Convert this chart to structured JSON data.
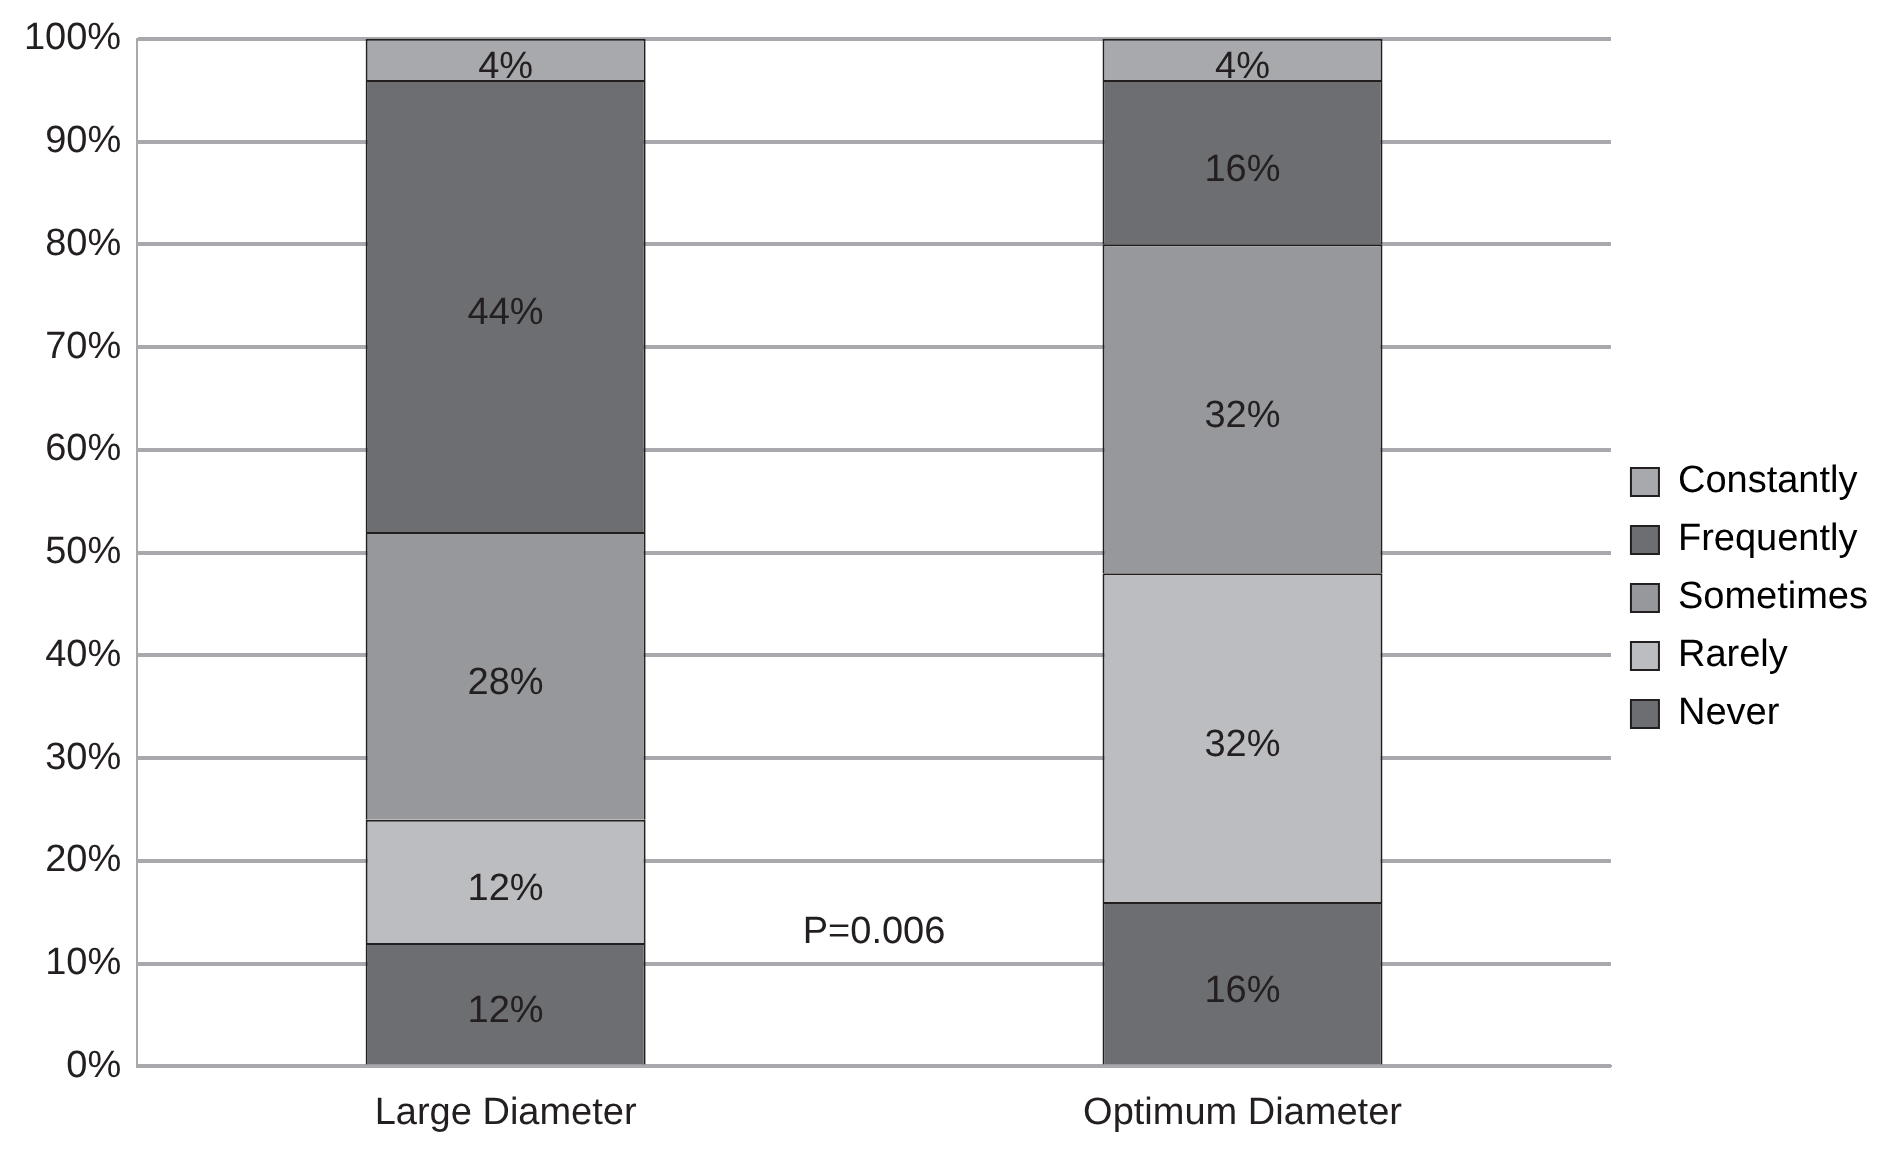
{
  "chart_data": {
    "type": "bar",
    "stacked": true,
    "categories": [
      "Large Diameter",
      "Optimum Diameter"
    ],
    "series": [
      {
        "name": "Never",
        "color": "#6d6e71",
        "values": [
          12,
          16
        ],
        "value_labels": [
          "12%",
          "16%"
        ]
      },
      {
        "name": "Rarely",
        "color": "#bcbdc0",
        "values": [
          12,
          32
        ],
        "value_labels": [
          "12%",
          "32%"
        ]
      },
      {
        "name": "Sometimes",
        "color": "#97989b",
        "values": [
          28,
          32
        ],
        "value_labels": [
          "28%",
          "32%"
        ]
      },
      {
        "name": "Frequently",
        "color": "#6d6e71",
        "values": [
          44,
          16
        ],
        "value_labels": [
          "44%",
          "16%"
        ]
      },
      {
        "name": "Constantly",
        "color": "#a7a9ac",
        "values": [
          4,
          4
        ],
        "value_labels": [
          "4%",
          "4%"
        ]
      }
    ],
    "ylim": [
      0,
      100
    ],
    "yticks": [
      {
        "value": 0,
        "label": "0%"
      },
      {
        "value": 10,
        "label": "10%"
      },
      {
        "value": 20,
        "label": "20%"
      },
      {
        "value": 30,
        "label": "30%"
      },
      {
        "value": 40,
        "label": "40%"
      },
      {
        "value": 50,
        "label": "50%"
      },
      {
        "value": 60,
        "label": "60%"
      },
      {
        "value": 70,
        "label": "70%"
      },
      {
        "value": 80,
        "label": "80%"
      },
      {
        "value": 90,
        "label": "90%"
      },
      {
        "value": 100,
        "label": "100%"
      }
    ],
    "grid": "y",
    "legend": "right",
    "annotations": [
      "P=0.006"
    ]
  }
}
